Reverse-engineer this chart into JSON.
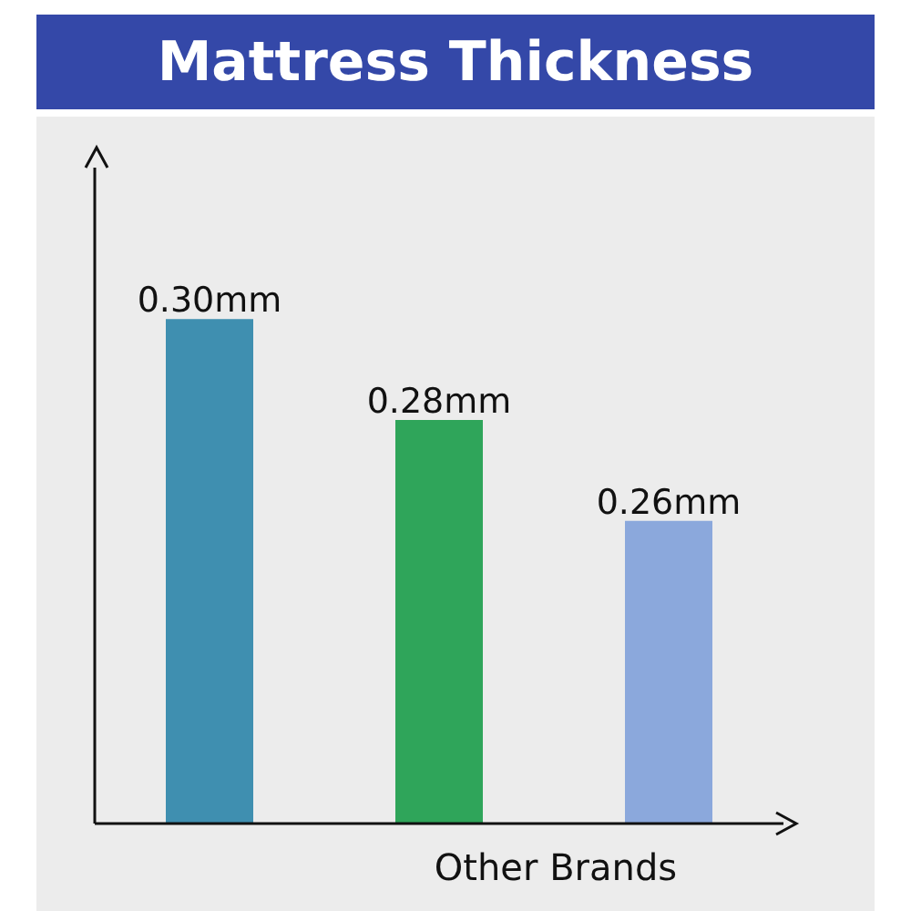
{
  "chart_data": {
    "type": "bar",
    "title": "Mattress Thickness",
    "xlabel": "Other Brands",
    "categories": [
      null,
      null,
      null
    ],
    "values": [
      0.3,
      0.28,
      0.26
    ],
    "colors": [
      "#3f8fb0",
      "#2fa55a",
      "#8ba8dc"
    ],
    "value_labels": [
      "0.30mm",
      "0.28mm",
      "0.26mm"
    ],
    "ylim": [
      0.2,
      0.33
    ],
    "tick_labels": false
  }
}
